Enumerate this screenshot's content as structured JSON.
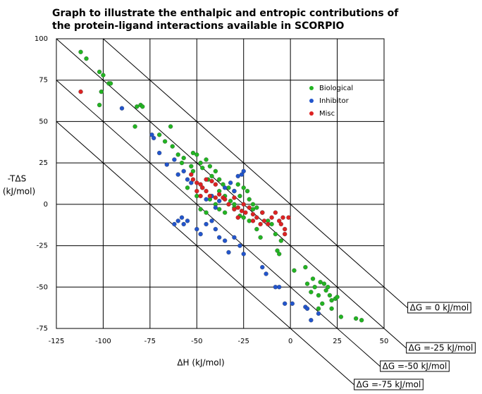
{
  "chart_data": {
    "type": "scatter",
    "title": [
      "Graph to illustrate the enthalpic and entropic contributions of",
      "the protein-ligand interactions available in SCORPIO"
    ],
    "x_label": "ΔH  (kJ/mol)",
    "y_label": [
      "-TΔS",
      "(kJ/mol)"
    ],
    "xlim": [
      -125,
      50
    ],
    "ylim": [
      -75,
      100
    ],
    "xticks": [
      -125,
      -100,
      -75,
      -50,
      -25,
      0,
      25,
      50
    ],
    "yticks": [
      -75,
      -50,
      -25,
      0,
      25,
      50,
      75,
      100
    ],
    "grid": true,
    "legend": "upper right",
    "reference_lines": [
      {
        "value": 0,
        "label": "ΔG = 0 kJ/mol"
      },
      {
        "value": -25,
        "label": "ΔG =-25 kJ/mol"
      },
      {
        "value": -50,
        "label": "ΔG =-50 kJ/mol"
      },
      {
        "value": -75,
        "label": "ΔG =-75 kJ/mol"
      }
    ],
    "series": [
      {
        "name": "Biological",
        "color": "#22b422",
        "x": [
          -112,
          -109,
          -102,
          -100,
          -97,
          -96,
          -101,
          -102,
          -82,
          -80,
          -79,
          -83,
          -70,
          -64,
          -67,
          -63,
          -60,
          -57,
          -58,
          -52,
          -50,
          -48,
          -45,
          -47,
          -43,
          -40,
          -42,
          -38,
          -36,
          -33,
          -30,
          -28,
          -27,
          -25,
          -23,
          -22,
          -20,
          -18,
          -15,
          -12,
          -10,
          -8,
          -5,
          -7,
          -6,
          -30,
          -35,
          -40,
          -38,
          -45,
          -48,
          -27,
          -22,
          -18,
          -16,
          -25,
          -32,
          -35,
          -55,
          -50,
          -43,
          -38,
          -20,
          2,
          8,
          9,
          12,
          13,
          15,
          11,
          16,
          18,
          19,
          20,
          21,
          22,
          17,
          24,
          25,
          22,
          15,
          27,
          35,
          38,
          -30,
          -44,
          -47,
          -52,
          -53
        ],
        "values": [
          92,
          88,
          80,
          78,
          73,
          73,
          68,
          60,
          59,
          60,
          59,
          47,
          42,
          47,
          38,
          35,
          30,
          28,
          25,
          31,
          30,
          25,
          27,
          22,
          23,
          20,
          17,
          15,
          12,
          10,
          8,
          12,
          5,
          10,
          8,
          3,
          0,
          -2,
          -5,
          -10,
          -12,
          -18,
          -22,
          -28,
          -30,
          -2,
          -5,
          0,
          -3,
          -5,
          -3,
          -7,
          -10,
          -15,
          -20,
          -8,
          2,
          5,
          10,
          5,
          3,
          8,
          -3,
          -40,
          -38,
          -48,
          -45,
          -50,
          -55,
          -53,
          -47,
          -48,
          -52,
          -50,
          -55,
          -58,
          -60,
          -57,
          -56,
          -63,
          -63,
          -68,
          -69,
          -70,
          0,
          15,
          10,
          20,
          23
        ]
      },
      {
        "name": "Inhibitor",
        "color": "#2255cc",
        "x": [
          -90,
          -74,
          -73,
          -70,
          -66,
          -62,
          -60,
          -57,
          -55,
          -53,
          -58,
          -60,
          -62,
          -57,
          -55,
          -50,
          -48,
          -45,
          -42,
          -40,
          -38,
          -35,
          -33,
          -30,
          -25,
          -27,
          -45,
          -42,
          -38,
          -35,
          -32,
          -28,
          -26,
          -25,
          -15,
          -13,
          -8,
          -6,
          -3,
          1,
          8,
          9,
          11,
          15,
          -40,
          -30
        ],
        "values": [
          58,
          42,
          40,
          31,
          24,
          27,
          18,
          20,
          15,
          13,
          -8,
          -10,
          -12,
          -12,
          -10,
          -15,
          -18,
          -12,
          -10,
          -15,
          -20,
          -22,
          -29,
          -20,
          -30,
          -25,
          3,
          5,
          2,
          10,
          13,
          17,
          18,
          20,
          -38,
          -42,
          -50,
          -50,
          -60,
          -60,
          -62,
          -63,
          -70,
          -66,
          -2,
          8
        ]
      },
      {
        "name": "Misc",
        "color": "#dd2222",
        "x": [
          -112,
          -53,
          -52,
          -50,
          -48,
          -47,
          -45,
          -43,
          -42,
          -40,
          -38,
          -36,
          -35,
          -33,
          -30,
          -28,
          -26,
          -25,
          -24,
          -22,
          -20,
          -18,
          -15,
          -14,
          -12,
          -10,
          -8,
          -6,
          -5,
          -3,
          -3,
          -4,
          -1,
          -45,
          -48,
          -50,
          -40,
          -30,
          -28,
          -20,
          -16
        ],
        "values": [
          68,
          18,
          15,
          13,
          12,
          10,
          8,
          5,
          14,
          12,
          6,
          4,
          3,
          0,
          -3,
          -2,
          -4,
          0,
          -5,
          -2,
          -6,
          -8,
          -5,
          -10,
          -12,
          -8,
          -5,
          -10,
          -12,
          -15,
          -18,
          -8,
          -8,
          15,
          5,
          8,
          4,
          4,
          -8,
          -10,
          -12
        ]
      }
    ]
  }
}
